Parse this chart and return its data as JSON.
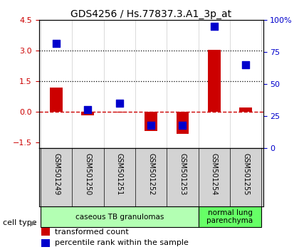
{
  "title": "GDS4256 / Hs.77837.3.A1_3p_at",
  "samples": [
    "GSM501249",
    "GSM501250",
    "GSM501251",
    "GSM501252",
    "GSM501253",
    "GSM501254",
    "GSM501255"
  ],
  "transformed_count": [
    1.2,
    -0.2,
    -0.05,
    -0.95,
    -1.1,
    3.05,
    0.2
  ],
  "percentile_rank": [
    82,
    30,
    35,
    18,
    18,
    95,
    65
  ],
  "ylim_left": [
    -1.8,
    4.5
  ],
  "ylim_right": [
    0,
    100
  ],
  "yticks_left": [
    -1.5,
    0,
    1.5,
    3,
    4.5
  ],
  "yticks_right": [
    0,
    25,
    50,
    75,
    100
  ],
  "hlines": [
    1.5,
    3.0
  ],
  "cell_type_groups": [
    {
      "label": "caseous TB granulomas",
      "samples_idx": [
        0,
        4
      ],
      "color": "#b3ffb3"
    },
    {
      "label": "normal lung\nparenchyma",
      "samples_idx": [
        5,
        6
      ],
      "color": "#66ff66"
    }
  ],
  "bar_color": "#cc0000",
  "dot_color": "#0000cc",
  "bar_width": 0.4,
  "dot_size": 50,
  "background_color": "#ffffff",
  "plot_bg_color": "#ffffff",
  "legend_labels": [
    "transformed count",
    "percentile rank within the sample"
  ],
  "cell_type_label": "cell type",
  "ylabel_left_color": "#cc0000",
  "ylabel_right_color": "#0000cc",
  "zero_line_color": "#cc0000",
  "grid_color": "#000000",
  "xlim": [
    -0.55,
    6.55
  ]
}
